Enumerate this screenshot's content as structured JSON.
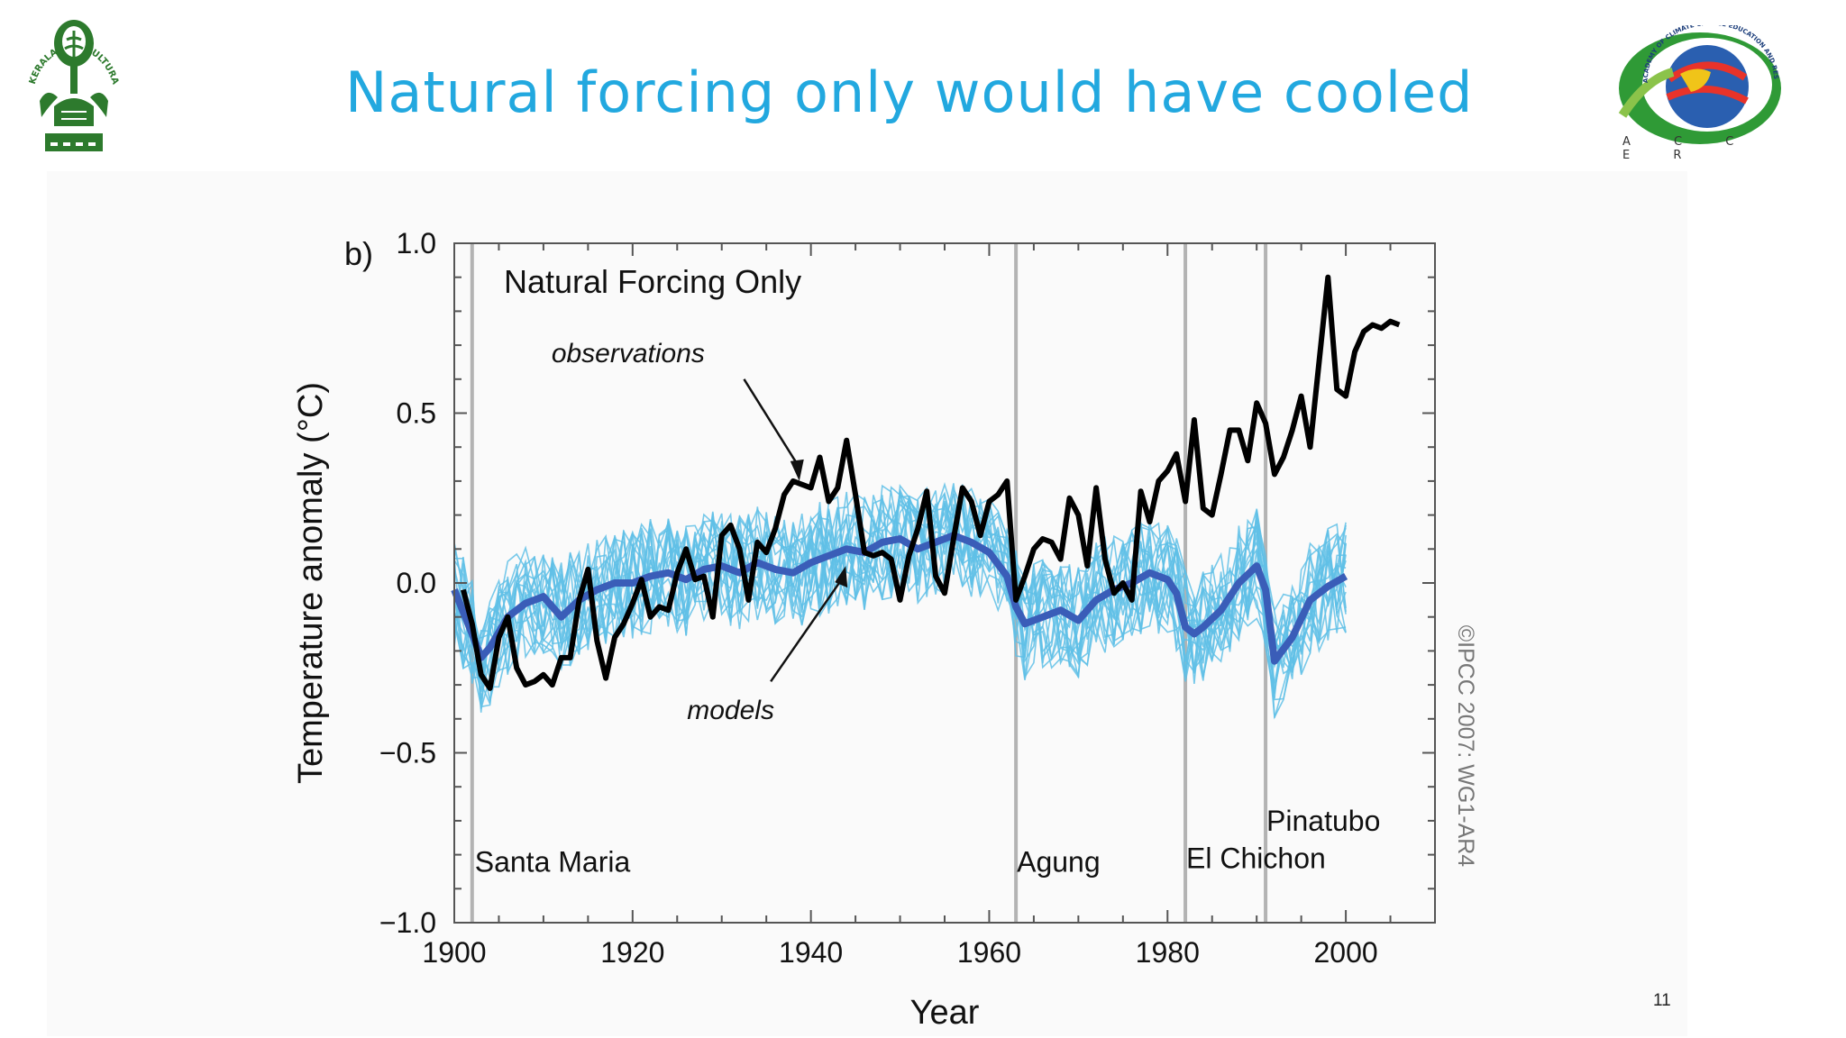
{
  "slide": {
    "title": "Natural forcing only would have cooled",
    "page_number": "11",
    "left_logo_text": "KERALA AGRICULTURAL UNIVERSITY",
    "right_logo_ring_text": "ACADEMY OF CLIMATE CHANGE EDUCATION AND RESEARCH",
    "right_logo_label": "A C C E R"
  },
  "colors": {
    "title": "#22a8df",
    "observations": "#000000",
    "model_mean": "#3a5db8",
    "model_runs": "#5fc0e6",
    "volcano_lines": "#b3b3b3",
    "logo_green": "#2d7a2d"
  },
  "chart_data": {
    "type": "line",
    "panel_label": "b)",
    "title": "Natural Forcing Only",
    "xlabel": "Year",
    "ylabel": "Temperature anomaly (°C)",
    "xlim": [
      1900,
      2010
    ],
    "ylim": [
      -1.0,
      1.0
    ],
    "xticks": [
      1900,
      1920,
      1940,
      1960,
      1980,
      2000
    ],
    "xtick_labels": [
      "1900",
      "1920",
      "1940",
      "1960",
      "1980",
      "2000"
    ],
    "yticks": [
      -1.0,
      -0.5,
      0.0,
      0.5,
      1.0
    ],
    "ytick_labels": [
      "−1.0",
      "−0.5",
      "0.0",
      "0.5",
      "1.0"
    ],
    "grid": false,
    "annotations": [
      {
        "text": "observations",
        "x": 1940,
        "y": 0.3
      },
      {
        "text": "models",
        "x": 1944,
        "y": 0.05
      }
    ],
    "volcanoes": [
      {
        "name": "Santa Maria",
        "year": 1902
      },
      {
        "name": "Agung",
        "year": 1963
      },
      {
        "name": "El Chichon",
        "year": 1982
      },
      {
        "name": "Pinatubo",
        "year": 1991
      }
    ],
    "copyright": "©IPCC 2007: WG1-AR4",
    "series": [
      {
        "name": "observations",
        "x": [
          1901,
          1902,
          1903,
          1904,
          1905,
          1906,
          1907,
          1908,
          1909,
          1910,
          1911,
          1912,
          1913,
          1914,
          1915,
          1916,
          1917,
          1918,
          1919,
          1920,
          1921,
          1922,
          1923,
          1924,
          1925,
          1926,
          1927,
          1928,
          1929,
          1930,
          1931,
          1932,
          1933,
          1934,
          1935,
          1936,
          1937,
          1938,
          1939,
          1940,
          1941,
          1942,
          1943,
          1944,
          1945,
          1946,
          1947,
          1948,
          1949,
          1950,
          1951,
          1952,
          1953,
          1954,
          1955,
          1956,
          1957,
          1958,
          1959,
          1960,
          1961,
          1962,
          1963,
          1964,
          1965,
          1966,
          1967,
          1968,
          1969,
          1970,
          1971,
          1972,
          1973,
          1974,
          1975,
          1976,
          1977,
          1978,
          1979,
          1980,
          1981,
          1982,
          1983,
          1984,
          1985,
          1986,
          1987,
          1988,
          1989,
          1990,
          1991,
          1992,
          1993,
          1994,
          1995,
          1996,
          1997,
          1998,
          1999,
          2000,
          2001,
          2002,
          2003,
          2004,
          2005,
          2006
        ],
        "values": [
          -0.02,
          -0.12,
          -0.27,
          -0.31,
          -0.16,
          -0.1,
          -0.25,
          -0.3,
          -0.29,
          -0.27,
          -0.3,
          -0.22,
          -0.22,
          -0.05,
          0.04,
          -0.17,
          -0.28,
          -0.16,
          -0.12,
          -0.06,
          0.01,
          -0.1,
          -0.07,
          -0.08,
          0.03,
          0.1,
          0.01,
          0.02,
          -0.1,
          0.14,
          0.17,
          0.1,
          -0.05,
          0.12,
          0.09,
          0.16,
          0.26,
          0.3,
          0.29,
          0.28,
          0.37,
          0.24,
          0.28,
          0.42,
          0.26,
          0.09,
          0.08,
          0.09,
          0.07,
          -0.05,
          0.08,
          0.16,
          0.27,
          0.02,
          -0.03,
          0.13,
          0.28,
          0.24,
          0.14,
          0.24,
          0.26,
          0.3,
          -0.05,
          0.02,
          0.1,
          0.13,
          0.12,
          0.07,
          0.25,
          0.2,
          0.05,
          0.28,
          0.07,
          -0.03,
          0.0,
          -0.05,
          0.27,
          0.18,
          0.3,
          0.33,
          0.38,
          0.24,
          0.48,
          0.22,
          0.2,
          0.32,
          0.45,
          0.45,
          0.36,
          0.53,
          0.47,
          0.32,
          0.37,
          0.45,
          0.55,
          0.4,
          0.65,
          0.9,
          0.57,
          0.55,
          0.68,
          0.74,
          0.76,
          0.75,
          0.77,
          0.76
        ]
      },
      {
        "name": "models",
        "x": [
          1900,
          1902,
          1903,
          1904,
          1906,
          1908,
          1910,
          1912,
          1914,
          1916,
          1918,
          1920,
          1922,
          1924,
          1926,
          1928,
          1930,
          1932,
          1934,
          1936,
          1938,
          1940,
          1942,
          1944,
          1946,
          1948,
          1950,
          1952,
          1954,
          1956,
          1958,
          1960,
          1962,
          1963,
          1964,
          1966,
          1968,
          1970,
          1972,
          1974,
          1976,
          1978,
          1980,
          1981,
          1982,
          1983,
          1984,
          1986,
          1988,
          1990,
          1991,
          1992,
          1994,
          1996,
          1998,
          2000
        ],
        "values": [
          -0.02,
          -0.15,
          -0.22,
          -0.19,
          -0.1,
          -0.06,
          -0.04,
          -0.1,
          -0.05,
          -0.02,
          0.0,
          0.0,
          0.02,
          0.03,
          0.01,
          0.04,
          0.05,
          0.03,
          0.06,
          0.04,
          0.03,
          0.06,
          0.08,
          0.1,
          0.09,
          0.12,
          0.13,
          0.1,
          0.12,
          0.14,
          0.12,
          0.09,
          0.02,
          -0.07,
          -0.12,
          -0.1,
          -0.08,
          -0.11,
          -0.05,
          -0.02,
          0.0,
          0.03,
          0.01,
          -0.03,
          -0.13,
          -0.15,
          -0.13,
          -0.08,
          0.0,
          0.05,
          -0.02,
          -0.23,
          -0.16,
          -0.05,
          -0.01,
          0.02
        ]
      }
    ]
  }
}
